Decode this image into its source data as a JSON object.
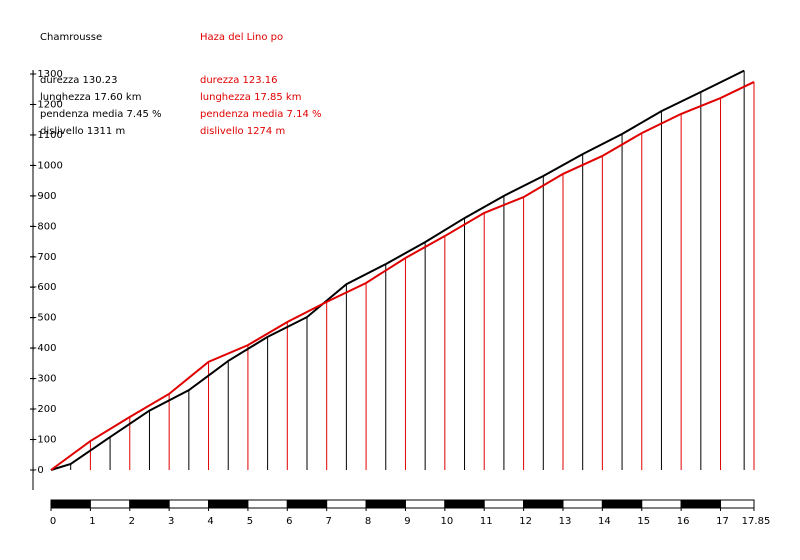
{
  "chart_data": {
    "type": "line",
    "xlim": [
      0,
      17.85
    ],
    "ylim": [
      0,
      1300
    ],
    "xticks": [
      0,
      1,
      2,
      3,
      4,
      5,
      6,
      7,
      8,
      9,
      10,
      11,
      12,
      13,
      14,
      15,
      16,
      17,
      17.85
    ],
    "yticks": [
      {
        "value": 0,
        "label": "+0"
      },
      {
        "value": 100,
        "label": "+100"
      },
      {
        "value": 200,
        "label": "+200"
      },
      {
        "value": 300,
        "label": "+300"
      },
      {
        "value": 400,
        "label": "+400"
      },
      {
        "value": 500,
        "label": "+500"
      },
      {
        "value": 600,
        "label": "+600"
      },
      {
        "value": 700,
        "label": "+700"
      },
      {
        "value": 800,
        "label": "+800"
      },
      {
        "value": 900,
        "label": "+900"
      },
      {
        "value": 1000,
        "label": "+1000"
      },
      {
        "value": 1100,
        "label": "+1100"
      },
      {
        "value": 1200,
        "label": "+1200"
      },
      {
        "value": 1300,
        "label": "+1300"
      }
    ],
    "series": [
      {
        "name": "Chamrousse",
        "color": "#000000",
        "stats": [
          "durezza 130.23",
          "lunghezza 17.60 km",
          "pendenza media 7.45 %",
          "dislivello 1311 m"
        ],
        "x": [
          0,
          0.5,
          1.5,
          2.5,
          3.5,
          4.5,
          5.5,
          6.5,
          7.5,
          8.5,
          9.5,
          10.5,
          11.5,
          12.5,
          13.5,
          14.5,
          15.5,
          16.5,
          17.6
        ],
        "values": [
          0,
          20,
          108,
          195,
          262,
          358,
          437,
          502,
          610,
          676,
          748,
          827,
          900,
          965,
          1037,
          1103,
          1178,
          1241,
          1311
        ]
      },
      {
        "name": "Haza del Lino po",
        "color": "#e00000",
        "stats": [
          "durezza 123.16",
          "lunghezza 17.85 km",
          "pendenza media 7.14 %",
          "dislivello 1274 m"
        ],
        "x": [
          0,
          1,
          2,
          3,
          4,
          5,
          6,
          7,
          8,
          9,
          10,
          11,
          12,
          13,
          14,
          15,
          16,
          17,
          17.85
        ],
        "values": [
          0,
          95,
          174,
          250,
          355,
          410,
          486,
          552,
          614,
          696,
          768,
          844,
          896,
          972,
          1031,
          1106,
          1169,
          1221,
          1274
        ]
      }
    ]
  }
}
